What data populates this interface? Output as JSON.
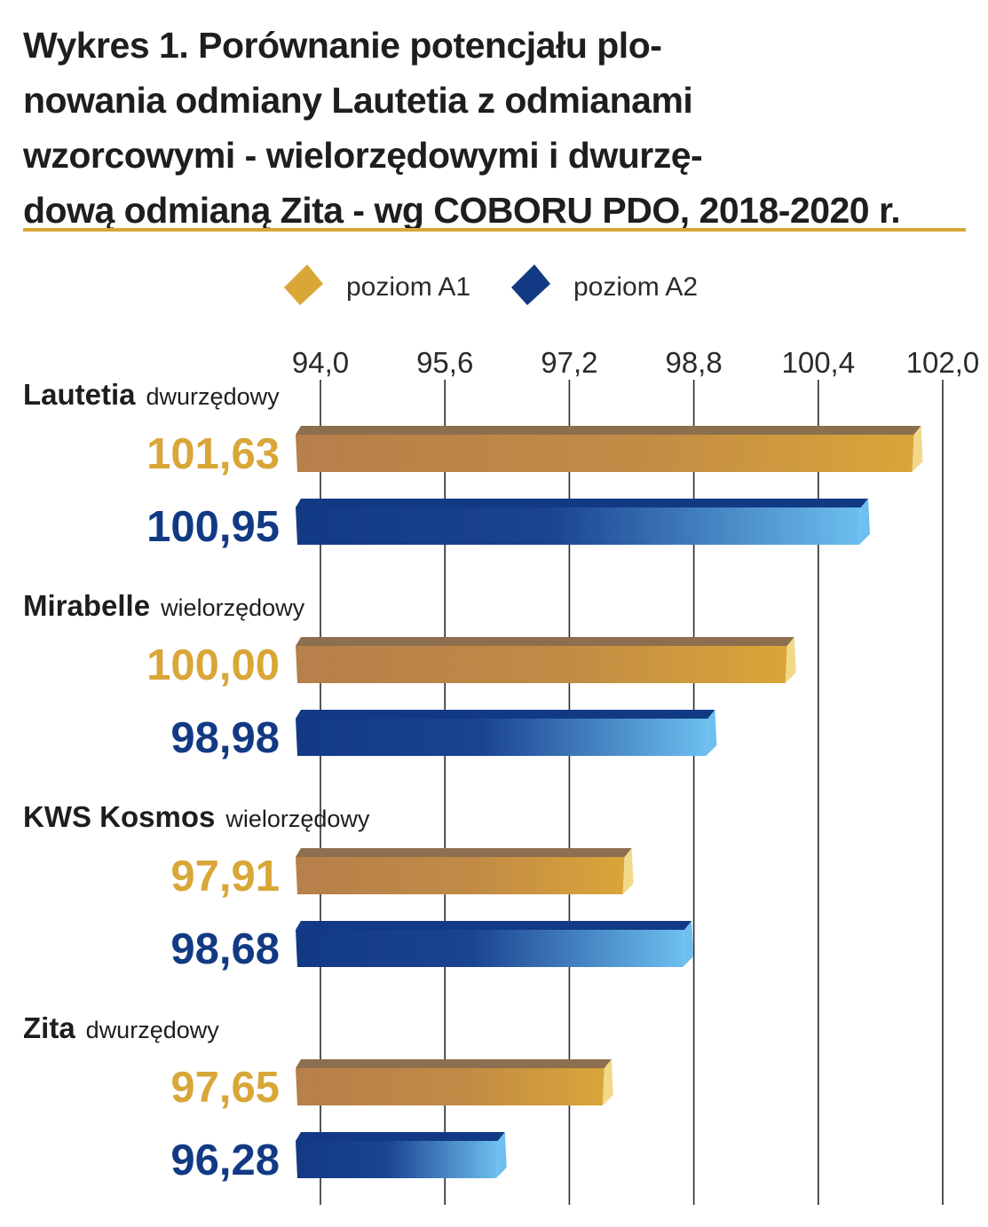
{
  "title_lines": [
    "Wykres 1. Porównanie potencjału plo-",
    "nowania odmiany Lautetia z odmianami",
    "wzorcowymi - wielorzędowymi i dwurzę-",
    "dową odmianą Zita - wg COBORU PDO, 2018-2020 r."
  ],
  "colors": {
    "a1": "#d9a638",
    "a1_dark": "#8c6f4e",
    "a1_light": "#f2d98a",
    "a2": "#123a84",
    "a2_light": "#6dbfef",
    "rule": "#d9a638"
  },
  "chart_data": {
    "type": "bar",
    "orientation": "horizontal",
    "title": "Wykres 1. Porównanie potencjału plonowania odmiany Lautetia z odmianami wzorcowymi - wielorzędowymi i dwurzędową odmianą Zita - wg COBORU PDO, 2018-2020 r.",
    "xlim": [
      94.0,
      102.0
    ],
    "ticks": [
      "94,0",
      "95,6",
      "97,2",
      "98,8",
      "100,4",
      "102,0"
    ],
    "tick_values": [
      94.0,
      95.6,
      97.2,
      98.8,
      100.4,
      102.0
    ],
    "legend": [
      "poziom A1",
      "poziom A2"
    ],
    "legend_position": "top",
    "grid": true,
    "categories": [
      {
        "name": "Lautetia",
        "type": "dwurzędowy",
        "a1": 101.63,
        "a1_label": "101,63",
        "a2": 100.95,
        "a2_label": "100,95"
      },
      {
        "name": "Mirabelle",
        "type": "wielorzędowy",
        "a1": 100.0,
        "a1_label": "100,00",
        "a2": 98.98,
        "a2_label": "98,98"
      },
      {
        "name": "KWS Kosmos",
        "type": "wielorzędowy",
        "a1": 97.91,
        "a1_label": "97,91",
        "a2": 98.68,
        "a2_label": "98,68"
      },
      {
        "name": "Zita",
        "type": "dwurzędowy",
        "a1": 97.65,
        "a1_label": "97,65",
        "a2": 96.28,
        "a2_label": "96,28"
      }
    ]
  }
}
